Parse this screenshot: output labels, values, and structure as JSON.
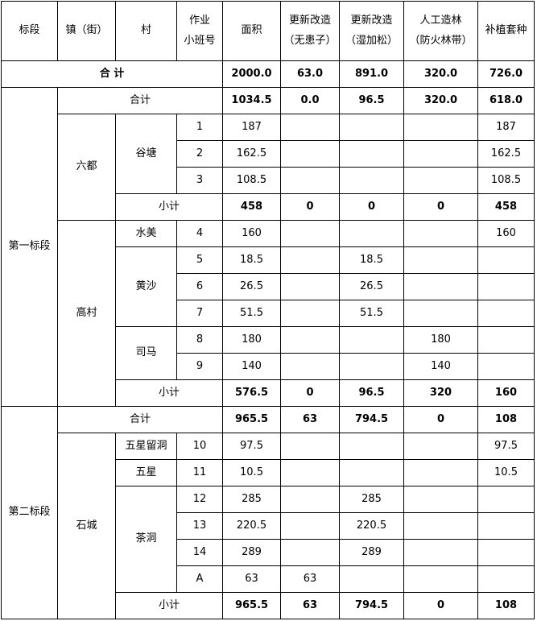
{
  "header": {
    "columns": [
      "标段",
      "镇（街）",
      "村",
      [
        "作业",
        "小班号"
      ],
      "面积",
      [
        "更新改造",
        "（无患子）"
      ],
      [
        "更新改造",
        "（湿加松）"
      ],
      [
        "人工造林",
        "（防火林带）"
      ],
      "补植套种"
    ]
  },
  "grand_total": {
    "label": "合 计",
    "values": [
      "2000.0",
      "63.0",
      "891.0",
      "320.0",
      "726.0"
    ]
  },
  "sections": [
    {
      "name": "第一标段",
      "total": {
        "label": "合计",
        "values": [
          "1034.5",
          "0.0",
          "96.5",
          "320.0",
          "618.0"
        ]
      },
      "towns": [
        {
          "name": "六都",
          "villages": [
            {
              "name": "谷塘",
              "rows": [
                {
                  "id": "1",
                  "values": [
                    "187",
                    null,
                    null,
                    null,
                    "187"
                  ]
                },
                {
                  "id": "2",
                  "values": [
                    "162.5",
                    null,
                    null,
                    null,
                    "162.5"
                  ]
                },
                {
                  "id": "3",
                  "values": [
                    "108.5",
                    null,
                    null,
                    null,
                    "108.5"
                  ]
                }
              ]
            }
          ],
          "subtotal": {
            "label": "小计",
            "values": [
              "458",
              "0",
              "0",
              "0",
              "458"
            ]
          }
        },
        {
          "name": "高村",
          "villages": [
            {
              "name": "水美",
              "rows": [
                {
                  "id": "4",
                  "values": [
                    "160",
                    null,
                    null,
                    null,
                    "160"
                  ]
                }
              ]
            },
            {
              "name": "黄沙",
              "rows": [
                {
                  "id": "5",
                  "values": [
                    "18.5",
                    null,
                    "18.5",
                    null,
                    null
                  ]
                },
                {
                  "id": "6",
                  "values": [
                    "26.5",
                    null,
                    "26.5",
                    null,
                    null
                  ]
                },
                {
                  "id": "7",
                  "values": [
                    "51.5",
                    null,
                    "51.5",
                    null,
                    null
                  ]
                }
              ]
            },
            {
              "name": "司马",
              "rows": [
                {
                  "id": "8",
                  "values": [
                    "180",
                    null,
                    null,
                    "180",
                    null
                  ]
                },
                {
                  "id": "9",
                  "values": [
                    "140",
                    null,
                    null,
                    "140",
                    null
                  ]
                }
              ]
            }
          ],
          "subtotal": {
            "label": "小计",
            "values": [
              "576.5",
              "0",
              "96.5",
              "320",
              "160"
            ]
          }
        }
      ]
    },
    {
      "name": "第二标段",
      "total": {
        "label": "合计",
        "values": [
          "965.5",
          "63",
          "794.5",
          "0",
          "108"
        ]
      },
      "towns": [
        {
          "name": "石城",
          "villages": [
            {
              "name": "五星留洞",
              "rows": [
                {
                  "id": "10",
                  "values": [
                    "97.5",
                    null,
                    null,
                    null,
                    "97.5"
                  ]
                }
              ]
            },
            {
              "name": "五星",
              "rows": [
                {
                  "id": "11",
                  "values": [
                    "10.5",
                    null,
                    null,
                    null,
                    "10.5"
                  ]
                }
              ]
            },
            {
              "name": "茶洞",
              "rows": [
                {
                  "id": "12",
                  "values": [
                    "285",
                    null,
                    "285",
                    null,
                    null
                  ]
                },
                {
                  "id": "13",
                  "values": [
                    "220.5",
                    null,
                    "220.5",
                    null,
                    null
                  ]
                },
                {
                  "id": "14",
                  "values": [
                    "289",
                    null,
                    "289",
                    null,
                    null
                  ]
                },
                {
                  "id": "A",
                  "values": [
                    "63",
                    "63",
                    null,
                    null,
                    null
                  ]
                }
              ]
            }
          ],
          "subtotal": {
            "label": "小计",
            "values": [
              "965.5",
              "63",
              "794.5",
              "0",
              "108"
            ]
          }
        }
      ]
    }
  ]
}
